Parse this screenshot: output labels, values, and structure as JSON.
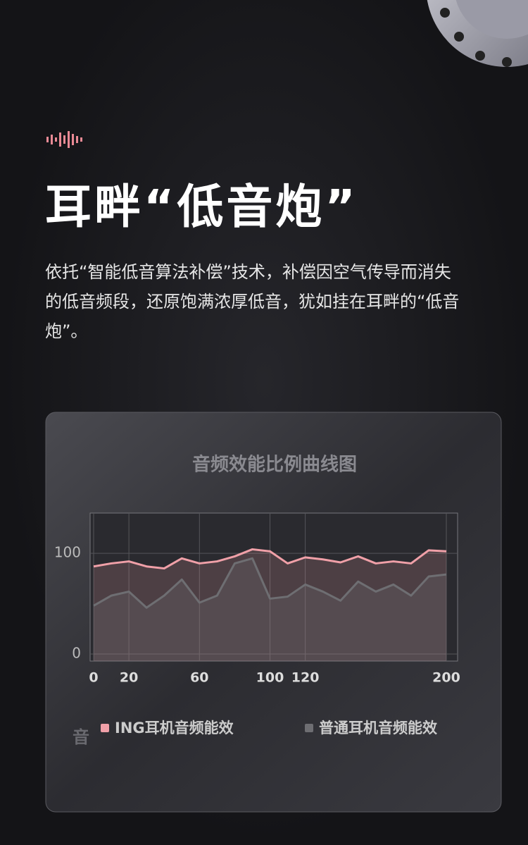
{
  "header": {
    "title": "耳畔“低音炮”",
    "body": "依托“智能低音算法补偿”技术，补偿因空气传导而消失的低音频段，还原饱满浓厚低音，犹如挂在耳畔的“低音炮”。"
  },
  "chart_data": {
    "type": "line",
    "title": "音频效能比例曲线图",
    "x": [
      0,
      10,
      20,
      30,
      40,
      50,
      60,
      70,
      80,
      90,
      100,
      110,
      120,
      130,
      140,
      150,
      160,
      170,
      180,
      190,
      200
    ],
    "series": [
      {
        "name": "ING耳机音频能效",
        "color": "#f0a0a8",
        "values": [
          87,
          90,
          92,
          87,
          85,
          95,
          90,
          92,
          97,
          104,
          102,
          90,
          96,
          94,
          91,
          97,
          90,
          92,
          90,
          103,
          102
        ]
      },
      {
        "name": "普通耳机音频能效",
        "color": "#6e6e72",
        "values": [
          48,
          58,
          62,
          46,
          58,
          74,
          51,
          58,
          90,
          95,
          55,
          57,
          69,
          62,
          53,
          72,
          62,
          69,
          58,
          77,
          79
        ]
      }
    ],
    "xlim": [
      0,
      200
    ],
    "xticks": [
      0,
      20,
      60,
      100,
      120,
      200
    ],
    "ylim": [
      -7,
      140
    ],
    "yticks": [
      0,
      100
    ],
    "grid": true,
    "footnote": "音"
  }
}
